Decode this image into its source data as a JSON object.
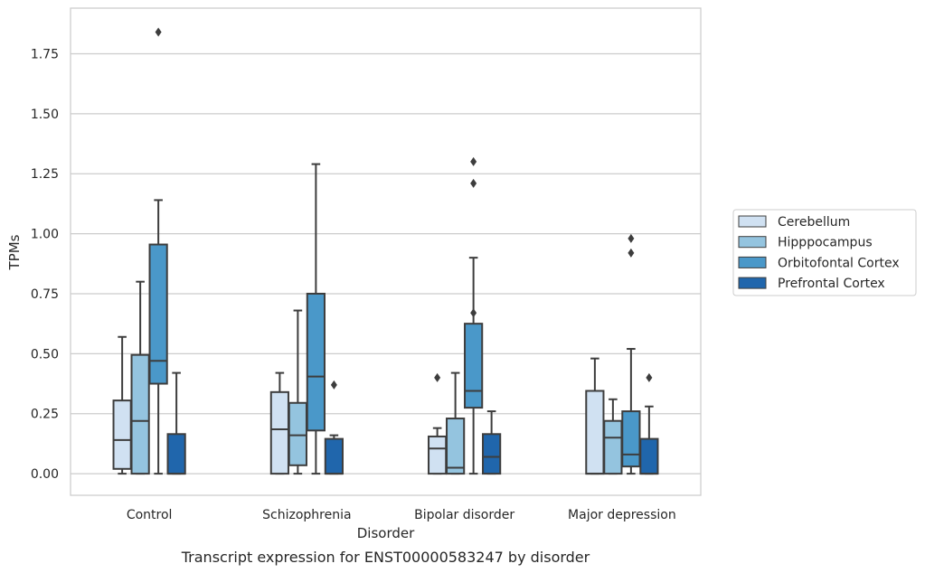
{
  "chart_data": {
    "type": "box",
    "caption": "Transcript expression for ENST00000583247 by disorder",
    "xlabel": "Disorder",
    "ylabel": "TPMs",
    "ylim": [
      -0.09,
      1.94
    ],
    "yticks": [
      0.0,
      0.25,
      0.5,
      0.75,
      1.0,
      1.25,
      1.5,
      1.75
    ],
    "ytick_labels": [
      "0.00",
      "0.25",
      "0.50",
      "0.75",
      "1.00",
      "1.25",
      "1.50",
      "1.75"
    ],
    "grid": "horizontal",
    "legend_position": "right",
    "categories": [
      "Control",
      "Schizophrenia",
      "Bipolar disorder",
      "Major depression"
    ],
    "series": [
      {
        "name": "Cerebellum",
        "color": "#d0e1f2",
        "boxes": [
          {
            "whislo": 0.0,
            "q1": 0.02,
            "med": 0.14,
            "q3": 0.305,
            "whishi": 0.57,
            "fliers": []
          },
          {
            "whislo": 0.0,
            "q1": 0.0,
            "med": 0.185,
            "q3": 0.34,
            "whishi": 0.42,
            "fliers": []
          },
          {
            "whislo": 0.0,
            "q1": 0.0,
            "med": 0.105,
            "q3": 0.155,
            "whishi": 0.19,
            "fliers": [
              0.4
            ]
          },
          {
            "whislo": 0.0,
            "q1": 0.0,
            "med": 0.0,
            "q3": 0.345,
            "whishi": 0.48,
            "fliers": []
          }
        ]
      },
      {
        "name": "Hipppocampus",
        "color": "#94c4df",
        "boxes": [
          {
            "whislo": 0.0,
            "q1": 0.0,
            "med": 0.22,
            "q3": 0.495,
            "whishi": 0.8,
            "fliers": []
          },
          {
            "whislo": 0.0,
            "q1": 0.035,
            "med": 0.16,
            "q3": 0.295,
            "whishi": 0.68,
            "fliers": []
          },
          {
            "whislo": 0.0,
            "q1": 0.0,
            "med": 0.025,
            "q3": 0.23,
            "whishi": 0.42,
            "fliers": []
          },
          {
            "whislo": 0.0,
            "q1": 0.0,
            "med": 0.15,
            "q3": 0.22,
            "whishi": 0.31,
            "fliers": []
          }
        ]
      },
      {
        "name": "Orbitofontal Cortex",
        "color": "#4a98c9",
        "boxes": [
          {
            "whislo": 0.0,
            "q1": 0.375,
            "med": 0.47,
            "q3": 0.955,
            "whishi": 1.14,
            "fliers": [
              1.84
            ]
          },
          {
            "whislo": 0.0,
            "q1": 0.18,
            "med": 0.405,
            "q3": 0.75,
            "whishi": 1.29,
            "fliers": []
          },
          {
            "whislo": 0.0,
            "q1": 0.275,
            "med": 0.345,
            "q3": 0.625,
            "whishi": 0.9,
            "fliers": [
              1.21,
              1.3,
              0.67
            ]
          },
          {
            "whislo": 0.0,
            "q1": 0.03,
            "med": 0.08,
            "q3": 0.26,
            "whishi": 0.52,
            "fliers": [
              0.92,
              0.98
            ]
          }
        ]
      },
      {
        "name": "Prefrontal Cortex",
        "color": "#2066ac",
        "boxes": [
          {
            "whislo": 0.0,
            "q1": 0.0,
            "med": 0.0,
            "q3": 0.165,
            "whishi": 0.42,
            "fliers": []
          },
          {
            "whislo": 0.0,
            "q1": 0.0,
            "med": 0.0,
            "q3": 0.145,
            "whishi": 0.16,
            "fliers": [
              0.37
            ]
          },
          {
            "whislo": 0.0,
            "q1": 0.0,
            "med": 0.07,
            "q3": 0.165,
            "whishi": 0.26,
            "fliers": []
          },
          {
            "whislo": 0.0,
            "q1": 0.0,
            "med": 0.0,
            "q3": 0.145,
            "whishi": 0.28,
            "fliers": [
              0.4
            ]
          }
        ]
      }
    ]
  }
}
